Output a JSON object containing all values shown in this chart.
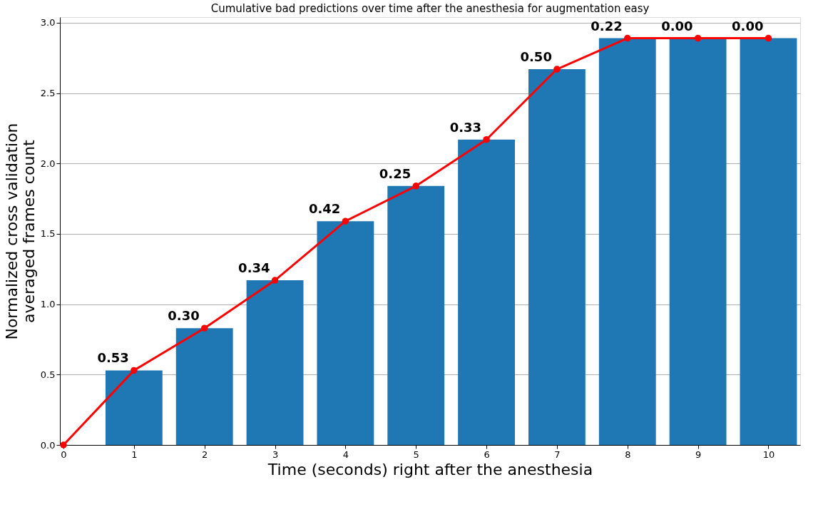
{
  "chart_data": {
    "type": "bar",
    "title": "Cumulative bad predictions over time after the anesthesia for augmentation easy",
    "xlabel": "Time (seconds) right after the anesthesia",
    "ylabel": "Normalized cross validation\naveraged frames count",
    "series": [
      {
        "color": "#1f77b4",
        "x": [
          1,
          2,
          3,
          4,
          5,
          6,
          7,
          8,
          9,
          10
        ],
        "values": [
          0.53,
          0.83,
          1.17,
          1.59,
          1.84,
          2.17,
          2.67,
          2.89,
          2.89,
          2.89
        ]
      },
      {
        "type": "line",
        "color": "#ff0000",
        "marker": "circle",
        "line_style": "solid",
        "x": [
          0,
          1,
          2,
          3,
          4,
          5,
          6,
          7,
          8,
          9,
          10
        ],
        "values": [
          0,
          0.53,
          0.83,
          1.17,
          1.59,
          1.84,
          2.17,
          2.67,
          2.89,
          2.89,
          2.89
        ]
      }
    ],
    "annotations": [
      {
        "text": "0.53",
        "x": 1,
        "y": 0.53
      },
      {
        "text": "0.30",
        "x": 2,
        "y": 0.83
      },
      {
        "text": "0.34",
        "x": 3,
        "y": 1.17
      },
      {
        "text": "0.42",
        "x": 4,
        "y": 1.59
      },
      {
        "text": "0.25",
        "x": 5,
        "y": 1.84
      },
      {
        "text": "0.33",
        "x": 6,
        "y": 2.17
      },
      {
        "text": "0.50",
        "x": 7,
        "y": 2.67
      },
      {
        "text": "0.22",
        "x": 8,
        "y": 2.89
      },
      {
        "text": "0.00",
        "x": 9,
        "y": 2.89
      },
      {
        "text": "0.00",
        "x": 10,
        "y": 2.89
      }
    ],
    "xlim": [
      0,
      10.4
    ],
    "xticks": [
      0,
      1,
      2,
      3,
      4,
      5,
      6,
      7,
      8,
      9,
      10
    ],
    "ylim": [
      0,
      3.04
    ],
    "yticks": [
      {
        "value": 0,
        "label": "0.0"
      },
      0.5,
      {
        "value": 1,
        "label": "1.0"
      },
      1.5,
      {
        "value": 2,
        "label": "2.0"
      },
      2.5,
      {
        "value": 3,
        "label": "3.0"
      }
    ],
    "grid": "y"
  }
}
